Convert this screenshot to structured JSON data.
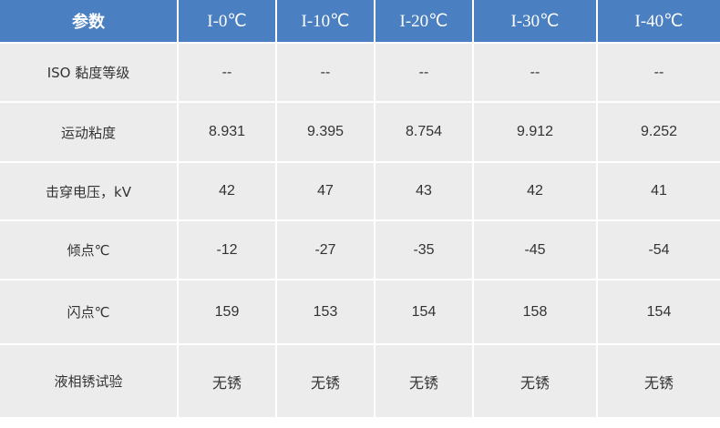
{
  "table": {
    "header": [
      "参数",
      "I-0℃",
      "I-10℃",
      "I-20℃",
      "I-30℃",
      "I-40℃"
    ],
    "rows": [
      [
        "ISO 黏度等级",
        "--",
        "--",
        "--",
        "--",
        "--"
      ],
      [
        "运动粘度",
        "8.931",
        "9.395",
        "8.754",
        "9.912",
        "9.252"
      ],
      [
        "击穿电压，kV",
        "42",
        "47",
        "43",
        "42",
        "41"
      ],
      [
        "倾点℃",
        "-12",
        "-27",
        "-35",
        "-45",
        "-54"
      ],
      [
        "闪点℃",
        "159",
        "153",
        "154",
        "158",
        "154"
      ],
      [
        "液相锈试验",
        "无锈",
        "无锈",
        "无锈",
        "无锈",
        "无锈"
      ]
    ]
  }
}
